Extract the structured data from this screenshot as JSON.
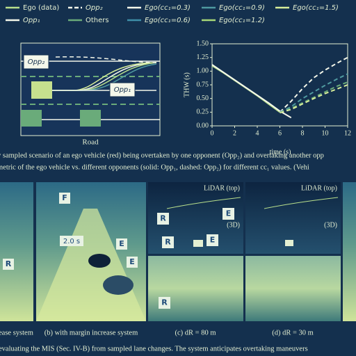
{
  "legend": [
    {
      "label": "Ego (data)",
      "color": "#b9e08c",
      "dash": false
    },
    {
      "label": "Opp₂",
      "color": "#f4f7ea",
      "dash": true
    },
    {
      "label": "Ego(cc₁=0.3)",
      "color": "#f4f7ea",
      "dash": false
    },
    {
      "label": "Ego(cc₁=0.9)",
      "color": "#4f9aa0",
      "dash": false
    },
    {
      "label": "Ego(cc₁=1.5)",
      "color": "#d8ee9a",
      "dash": false
    },
    {
      "label": "Opp₁",
      "color": "#f4f7ea",
      "dash": false
    },
    {
      "label": "Others",
      "color": "#6aab7a",
      "dash": false
    },
    {
      "label": "Ego(cc₁=0.6)",
      "color": "#3f8ea8",
      "dash": false
    },
    {
      "label": "Ego(cc₁=1.2)",
      "color": "#a8d878",
      "dash": false
    }
  ],
  "road": {
    "opp2": "Opp₂",
    "opp1": "Opp₁",
    "caption": "Road"
  },
  "chart_data": {
    "type": "line",
    "xlabel": "time (s)",
    "ylabel": "THW (s)",
    "xlim": [
      0,
      12
    ],
    "ylim": [
      0,
      1.5
    ],
    "xticks": [
      0,
      2,
      4,
      6,
      8,
      10,
      12
    ],
    "yticks": [
      {
        "value": 0,
        "label": "0.00"
      },
      {
        "value": 0.25,
        "label": "0.25"
      },
      {
        "value": 0.5,
        "label": "0.50"
      },
      {
        "value": 0.75,
        "label": "0.75"
      },
      {
        "value": 1,
        "label": "1.00"
      },
      {
        "value": 1.25,
        "label": "1.25"
      },
      {
        "value": 1.5,
        "label": "1.50"
      }
    ],
    "x": [
      0,
      1,
      2,
      3,
      4,
      5,
      6,
      7,
      8,
      9,
      10,
      11,
      12
    ],
    "series": [
      {
        "color": "#b9e08c",
        "dash": false,
        "values": [
          1.1,
          0.97,
          0.83,
          0.69,
          0.55,
          0.4,
          0.25,
          null,
          null,
          null,
          null,
          null,
          null
        ]
      },
      {
        "color": "#f4f7ea",
        "dash": false,
        "values": [
          1.12,
          0.98,
          0.84,
          0.7,
          0.56,
          0.42,
          0.27,
          0.15,
          null,
          null,
          null,
          null,
          null
        ]
      },
      {
        "color": "#f4f7ea",
        "dash": true,
        "values": [
          null,
          null,
          null,
          null,
          null,
          null,
          0.25,
          0.45,
          0.68,
          0.88,
          1.02,
          1.14,
          1.25
        ]
      },
      {
        "color": "#4f9aa0",
        "dash": true,
        "values": [
          null,
          null,
          null,
          null,
          null,
          null,
          0.25,
          0.35,
          0.5,
          0.62,
          0.74,
          0.85,
          0.95
        ]
      },
      {
        "color": "#6aab7a",
        "dash": true,
        "values": [
          null,
          null,
          null,
          null,
          null,
          null,
          0.24,
          0.32,
          0.42,
          0.52,
          0.62,
          0.72,
          0.8
        ]
      },
      {
        "color": "#d8ee9a",
        "dash": true,
        "values": [
          null,
          null,
          null,
          null,
          null,
          null,
          0.24,
          0.3,
          0.4,
          0.5,
          0.59,
          0.67,
          0.75
        ]
      }
    ]
  },
  "caption": [
    "y sampled scenario of an ego vehicle (red) being overtaken by one opponent (Opp₂) and overtaking another opp",
    "metric of the ego vehicle vs. different opponents (solid: Opp₁, dashed: Opp₂) for different cc₁ values. (Vehi"
  ],
  "panels": [
    {
      "caption": "ease system",
      "tags": [
        "R"
      ]
    },
    {
      "caption": "(b) with margin increase system",
      "tags": [
        "F",
        "2.0 s",
        "E",
        "E"
      ]
    },
    {
      "caption": "(c) dR = 80 m",
      "lidar": "LiDAR (top)",
      "view": "(3D)",
      "tags": [
        "R",
        "E",
        "R",
        "E",
        "R"
      ]
    },
    {
      "caption": "(d) dR = 30 m",
      "lidar": "LiDAR (top)",
      "view": "(3D)"
    }
  ],
  "footer": "evaluating the MIS (Sec. IV-B) from sampled lane changes. The system anticipates overtaking maneuvers"
}
